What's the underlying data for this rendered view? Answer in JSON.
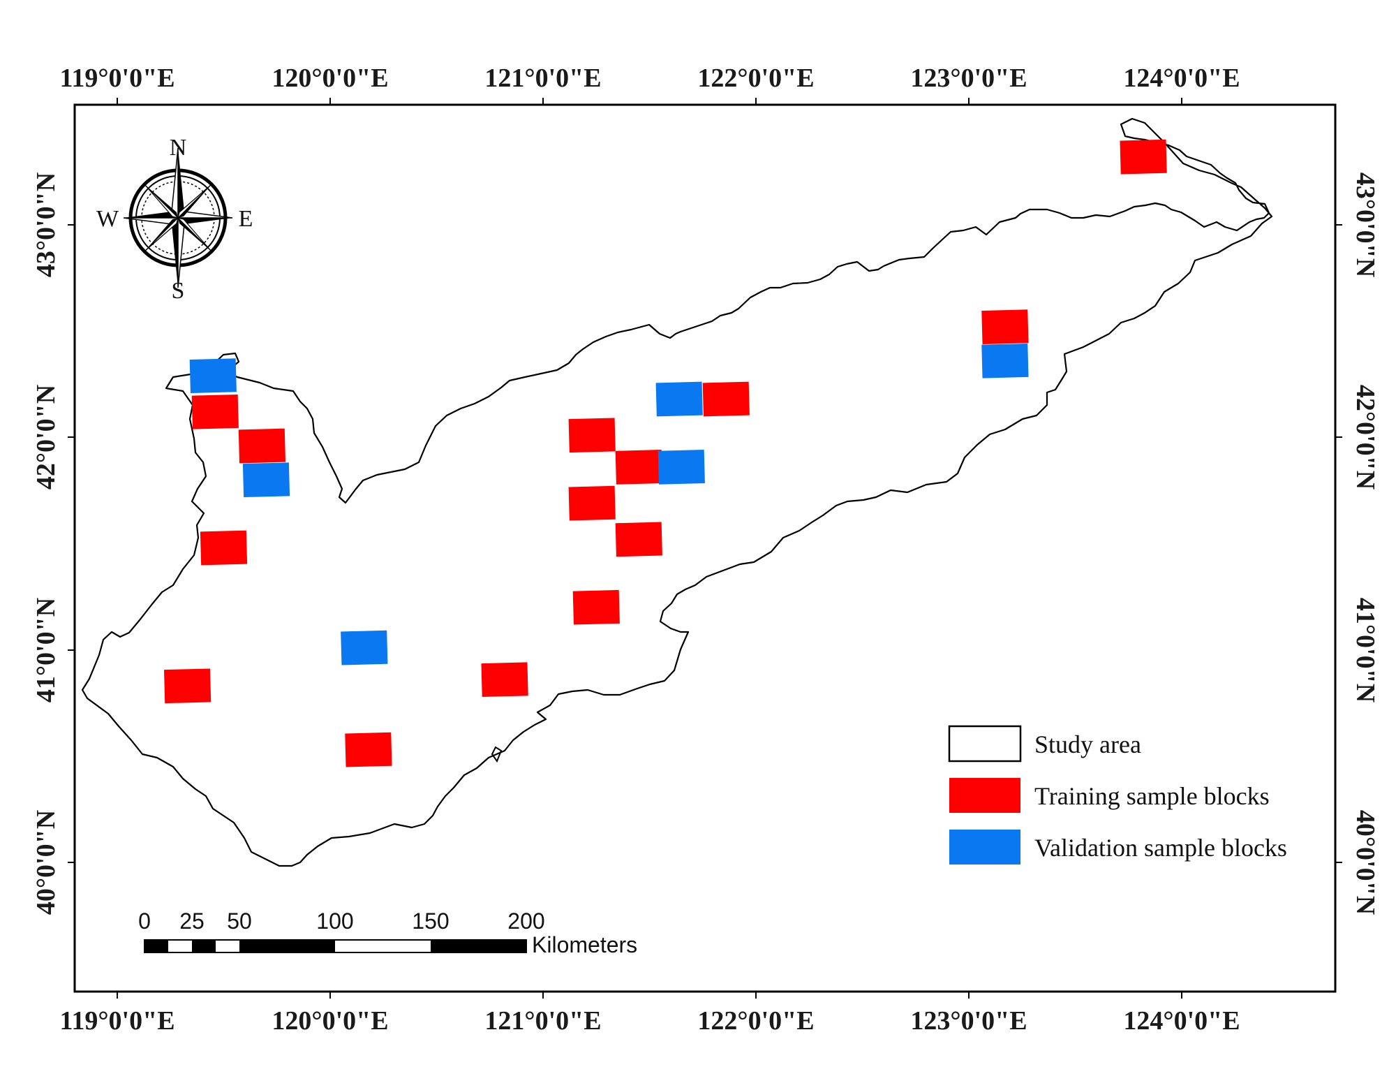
{
  "map": {
    "top_lon_labels": [
      "119°0'0\"E",
      "120°0'0\"E",
      "121°0'0\"E",
      "122°0'0\"E",
      "123°0'0\"E",
      "124°0'0\"E"
    ],
    "bottom_lon_labels": [
      "119°0'0\"E",
      "120°0'0\"E",
      "121°0'0\"E",
      "122°0'0\"E",
      "123°0'0\"E",
      "124°0'0\"E"
    ],
    "left_lat_labels": [
      "43°0'0\"N",
      "42°0'0\"N",
      "41°0'0\"N",
      "40°0'0\"N"
    ],
    "right_lat_labels": [
      "43°0'0\"N",
      "42°0'0\"N",
      "41°0'0\"N",
      "40°0'0\"N"
    ],
    "compass": {
      "north": "N",
      "south": "S",
      "east": "E",
      "west": "W"
    },
    "legend": {
      "study_area": "Study area",
      "training": "Training sample blocks",
      "validation": "Validation sample blocks"
    },
    "scalebar": {
      "ticks": [
        "0",
        "25",
        "50",
        "100",
        "150",
        "200"
      ],
      "unit": "Kilometers"
    },
    "colors": {
      "training": "#ff0000",
      "training_dark": "#e30d0d",
      "validation": "#0a78f0",
      "validation_dark": "#0a5ad2",
      "boundary": "#000000"
    },
    "sample_blocks": [
      {
        "type": "validation",
        "lon": 119.45,
        "lat": 42.29
      },
      {
        "type": "training",
        "lon": 119.46,
        "lat": 42.12
      },
      {
        "type": "training",
        "lon": 119.68,
        "lat": 41.96
      },
      {
        "type": "validation",
        "lon": 119.7,
        "lat": 41.8
      },
      {
        "type": "training",
        "lon": 119.5,
        "lat": 41.48
      },
      {
        "type": "training",
        "lon": 119.33,
        "lat": 40.83
      },
      {
        "type": "validation",
        "lon": 120.16,
        "lat": 41.01
      },
      {
        "type": "training",
        "lon": 120.18,
        "lat": 40.53
      },
      {
        "type": "training",
        "lon": 120.82,
        "lat": 40.86
      },
      {
        "type": "training",
        "lon": 121.23,
        "lat": 42.01
      },
      {
        "type": "training",
        "lon": 121.45,
        "lat": 41.86
      },
      {
        "type": "validation",
        "lon": 121.65,
        "lat": 41.86
      },
      {
        "type": "training",
        "lon": 121.23,
        "lat": 41.69
      },
      {
        "type": "training",
        "lon": 121.45,
        "lat": 41.52
      },
      {
        "type": "training",
        "lon": 121.25,
        "lat": 41.2
      },
      {
        "type": "validation",
        "lon": 121.64,
        "lat": 42.18
      },
      {
        "type": "training",
        "lon": 121.86,
        "lat": 42.18
      },
      {
        "type": "training",
        "lon": 123.17,
        "lat": 42.52
      },
      {
        "type": "validation",
        "lon": 123.17,
        "lat": 42.36
      },
      {
        "type": "training",
        "lon": 123.82,
        "lat": 43.32
      }
    ]
  }
}
